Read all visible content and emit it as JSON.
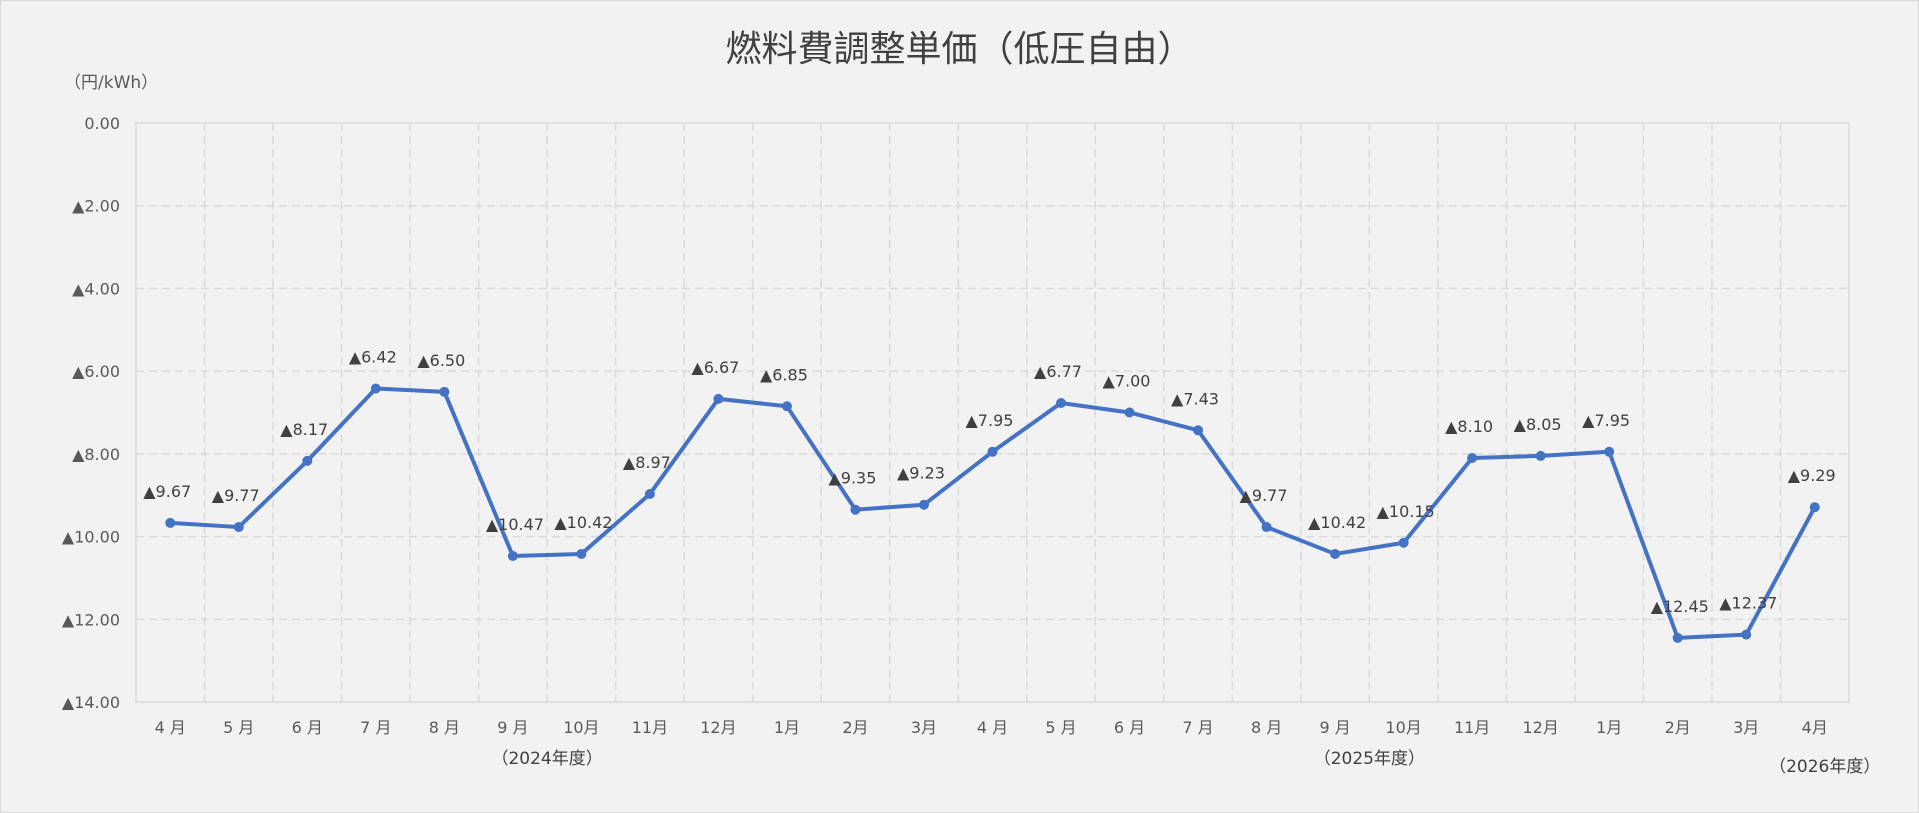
{
  "chart_data": {
    "type": "line",
    "title": "燃料費調整単価（低圧自由）",
    "ylabel": "（円/kWh）",
    "xlabel": "",
    "ylim": [
      0,
      -14
    ],
    "y_ticks": [
      "0.00",
      "▲2.00",
      "▲4.00",
      "▲6.00",
      "▲8.00",
      "▲10.00",
      "▲12.00",
      "▲14.00"
    ],
    "grid": true,
    "categories": [
      "4 月",
      "5 月",
      "6 月",
      "7 月",
      "8 月",
      "9 月",
      "10月",
      "11月",
      "12月",
      "1月",
      "2月",
      "3月",
      "4 月",
      "5 月",
      "6 月",
      "7 月",
      "8 月",
      "9 月",
      "10月",
      "11月",
      "12月",
      "1月",
      "2月",
      "3月",
      "4月"
    ],
    "year_labels": [
      {
        "text": "（2024年度）",
        "center_index": 5.5
      },
      {
        "text": "（2025年度）",
        "center_index": 17.5
      },
      {
        "text": "（2026年度）",
        "center_index": 24
      }
    ],
    "series": [
      {
        "name": "燃料費調整単価",
        "color": "#4472c4",
        "values": [
          -9.67,
          -9.77,
          -8.17,
          -6.42,
          -6.5,
          -10.47,
          -10.42,
          -8.97,
          -6.67,
          -6.85,
          -9.35,
          -9.23,
          -7.95,
          -6.77,
          -7.0,
          -7.43,
          -9.77,
          -10.42,
          -10.15,
          -8.1,
          -8.05,
          -7.95,
          -12.45,
          -12.37,
          -9.29
        ],
        "labels": [
          "▲9.67",
          "▲9.77",
          "▲8.17",
          "▲6.42",
          "▲6.50",
          "▲10.47",
          "▲10.42",
          "▲8.97",
          "▲6.67",
          "▲6.85",
          "▲9.35",
          "▲9.23",
          "▲7.95",
          "▲6.77",
          "▲7.00",
          "▲7.43",
          "▲9.77",
          "▲10.42",
          "▲10.15",
          "▲8.10",
          "▲8.05",
          "▲7.95",
          "▲12.45",
          "▲12.37",
          "▲9.29"
        ]
      }
    ]
  }
}
